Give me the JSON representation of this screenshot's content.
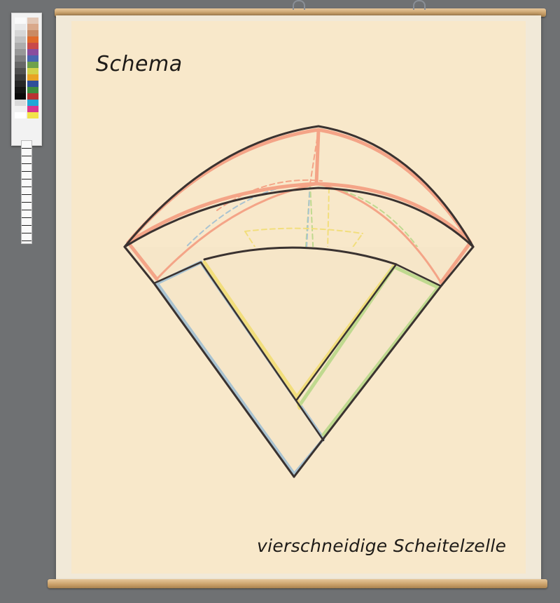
{
  "poster": {
    "title": "Schema",
    "caption": "vierschneidige Scheitelzelle"
  },
  "colors": {
    "outline": "#3a3230",
    "salmon": "#f4a487",
    "light_blue": "#a9c3d1",
    "yellow": "#f2de7c",
    "green": "#bfd98f",
    "paper": "#f8e8ca",
    "background": "#6f7173",
    "rod": "#d2a86f"
  },
  "icons": [
    "color-reference-card",
    "ruler-scale",
    "hanging-hook"
  ]
}
